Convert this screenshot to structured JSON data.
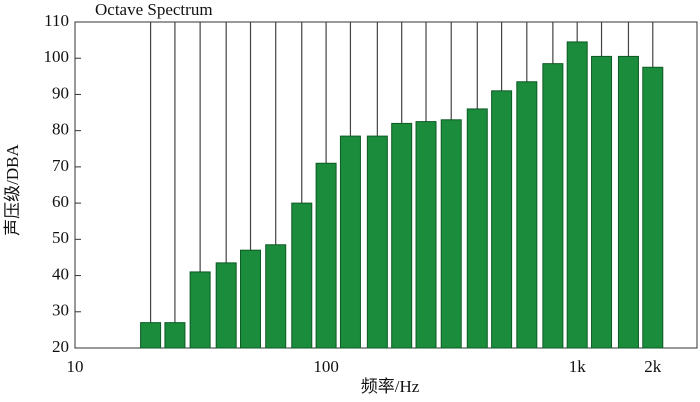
{
  "chart_data": {
    "type": "bar",
    "title": "Octave Spectrum",
    "x_label": "频率/Hz",
    "y_label": "声压级/DBA",
    "x": [
      20,
      25,
      31.5,
      40,
      50,
      63,
      80,
      100,
      125,
      160,
      200,
      250,
      315,
      400,
      500,
      630,
      800,
      1000,
      1250,
      1600,
      2000
    ],
    "values": [
      27,
      27,
      41,
      43.5,
      47,
      48.5,
      60,
      71,
      78.5,
      78.5,
      82,
      82.5,
      83,
      86,
      91,
      93.5,
      98.5,
      104.5,
      100.5,
      100.5,
      97.5
    ],
    "color": "#1b8c3c",
    "x_log": true,
    "xlim": [
      10,
      3000
    ],
    "xticks": [
      10,
      100,
      {
        "value": 1000,
        "label": "1k"
      },
      {
        "value": 2000,
        "label": "2k"
      }
    ],
    "ylim": [
      20,
      110
    ],
    "yticks": [
      20,
      30,
      40,
      50,
      60,
      70,
      80,
      90,
      100,
      110
    ]
  }
}
